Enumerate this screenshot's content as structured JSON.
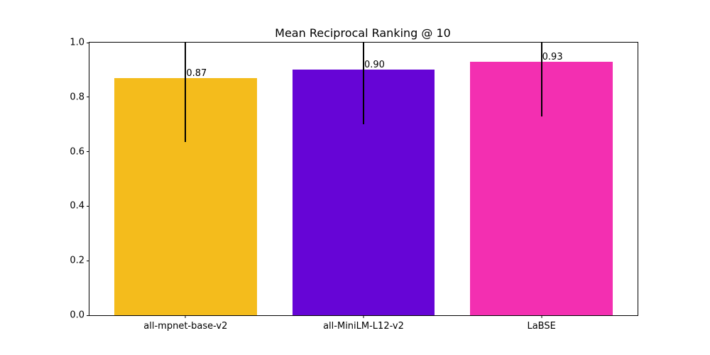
{
  "chart_data": {
    "type": "bar",
    "title": "Mean Reciprocal Ranking @ 10",
    "categories": [
      "all-mpnet-base-v2",
      "all-MiniLM-L12-v2",
      "LaBSE"
    ],
    "values": [
      0.87,
      0.9,
      0.93
    ],
    "value_labels": [
      "0.87",
      "0.90",
      "0.93"
    ],
    "bar_colors": [
      "#F4BC1C",
      "#6605D6",
      "#F32FB1"
    ],
    "error_lower": [
      0.635,
      0.7,
      0.73
    ],
    "error_upper": [
      1.0,
      1.0,
      1.0
    ],
    "error_upper_clipped_at_ylim": true,
    "error_color": "#000000",
    "xlabel": "",
    "ylabel": "",
    "ylim": [
      0.0,
      1.0
    ],
    "xlim": [
      -0.54,
      2.54
    ],
    "bar_width_data_units": 0.8,
    "yticks": [
      "0.0",
      "0.2",
      "0.4",
      "0.6",
      "0.8",
      "1.0"
    ],
    "ytick_values": [
      0.0,
      0.2,
      0.4,
      0.6,
      0.8,
      1.0
    ],
    "grid": false,
    "legend": null,
    "background": "#ffffff",
    "spine_color": "#000000",
    "text_color": "#000000"
  }
}
